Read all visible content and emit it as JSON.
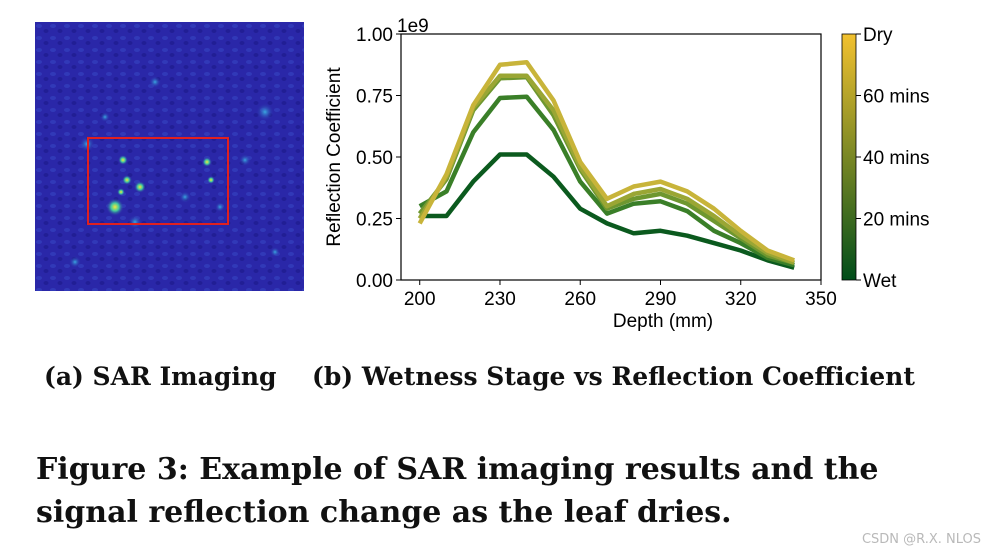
{
  "figure": {
    "caption": "Figure 3: Example of SAR imaging results and the signal reflection change as the leaf dries.",
    "watermark": "CSDN @R.X. NLOS"
  },
  "panel_a": {
    "caption": "(a) SAR Imaging",
    "colors": {
      "background": "#2a27a8",
      "roi_box": "#e02020",
      "hot": "#f0e020",
      "mid": "#30c0a0"
    }
  },
  "panel_b": {
    "caption": "(b) Wetness Stage vs Reflection Coefficient"
  },
  "chart_data": {
    "type": "line",
    "xlabel": "Depth (mm)",
    "ylabel": "Reflection Coefficient",
    "y_multiplier": "1e9",
    "xlim": [
      193,
      350
    ],
    "ylim": [
      0,
      1.0
    ],
    "xticks": [
      200,
      230,
      260,
      290,
      320,
      350
    ],
    "yticks": [
      "0.00",
      "0.25",
      "0.50",
      "0.75",
      "1.00"
    ],
    "x": [
      200,
      210,
      220,
      230,
      240,
      250,
      260,
      270,
      280,
      290,
      300,
      310,
      320,
      330,
      340
    ],
    "series": [
      {
        "color": "#0b5a1e",
        "values": [
          0.26,
          0.26,
          0.4,
          0.51,
          0.51,
          0.42,
          0.29,
          0.23,
          0.19,
          0.2,
          0.18,
          0.15,
          0.12,
          0.08,
          0.05
        ]
      },
      {
        "color": "#3a7f28",
        "values": [
          0.3,
          0.36,
          0.6,
          0.74,
          0.745,
          0.61,
          0.4,
          0.27,
          0.31,
          0.32,
          0.28,
          0.2,
          0.15,
          0.09,
          0.06
        ]
      },
      {
        "color": "#6e972f",
        "values": [
          0.27,
          0.41,
          0.69,
          0.82,
          0.825,
          0.67,
          0.45,
          0.29,
          0.33,
          0.35,
          0.31,
          0.24,
          0.17,
          0.1,
          0.07
        ]
      },
      {
        "color": "#9aa634",
        "values": [
          0.25,
          0.42,
          0.7,
          0.83,
          0.83,
          0.69,
          0.46,
          0.3,
          0.35,
          0.37,
          0.33,
          0.26,
          0.18,
          0.11,
          0.07
        ]
      },
      {
        "color": "#c8b43a",
        "values": [
          0.23,
          0.43,
          0.71,
          0.875,
          0.885,
          0.73,
          0.48,
          0.33,
          0.38,
          0.4,
          0.36,
          0.29,
          0.2,
          0.12,
          0.08
        ]
      }
    ],
    "colorbar": {
      "labels": [
        "Dry",
        "60 mins",
        "40 mins",
        "20 mins",
        "Wet"
      ],
      "color_top": "#f2c12f",
      "color_bottom": "#004d1a"
    },
    "grid": false
  }
}
